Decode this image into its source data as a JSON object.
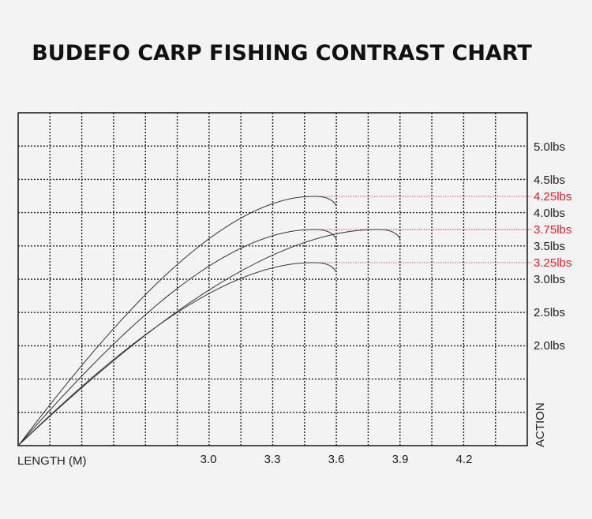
{
  "chart_data": {
    "type": "line",
    "title": "BUDEFO CARP FISHING CONTRAST CHART",
    "xlabel": "LENGTH (M)",
    "ylabel": "ACTION",
    "x_ticks": [
      "3.0",
      "3.3",
      "3.6",
      "3.9",
      "4.2"
    ],
    "y_ticks": [
      "5.0lbs",
      "4.5lbs",
      "4.0lbs",
      "3.5lbs",
      "3.0lbs",
      "2.5lbs",
      "2.0lbs"
    ],
    "highlighted_ticks": [
      "4.25lbs",
      "3.75lbs",
      "3.25lbs"
    ],
    "highlight_color": "#e0202a",
    "grid": true,
    "series": [
      {
        "length_m": 3.6,
        "test_curve_lbs": 4.25
      },
      {
        "length_m": 3.6,
        "test_curve_lbs": 3.75
      },
      {
        "length_m": 3.9,
        "test_curve_lbs": 3.75
      },
      {
        "length_m": 3.6,
        "test_curve_lbs": 3.25
      }
    ]
  }
}
